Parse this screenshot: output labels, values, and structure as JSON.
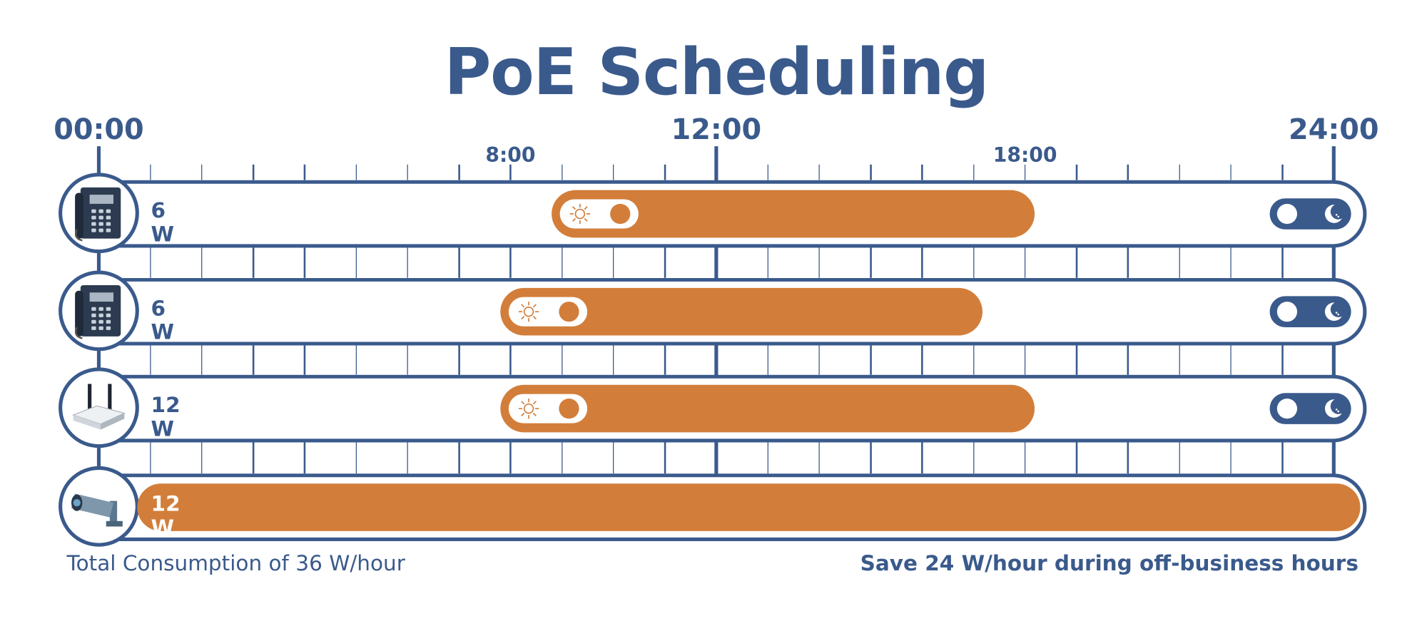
{
  "title": "PoE Scheduling",
  "axis": {
    "major_labels": [
      {
        "label": "00:00",
        "hour": 0
      },
      {
        "label": "12:00",
        "hour": 12
      },
      {
        "label": "24:00",
        "hour": 24
      }
    ],
    "minor_labels": [
      {
        "label": "8:00",
        "hour": 8
      },
      {
        "label": "18:00",
        "hour": 18
      }
    ]
  },
  "colors": {
    "navy": "#3a5a8c",
    "orange": "#d27e3a"
  },
  "devices": [
    {
      "icon": "desk-phone-icon",
      "power": "6 W",
      "on_start": 9,
      "on_end": 18,
      "day_toggle": true,
      "night_toggle": true
    },
    {
      "icon": "desk-phone-icon",
      "power": "6 W",
      "on_start": 8,
      "on_end": 17,
      "day_toggle": true,
      "night_toggle": true
    },
    {
      "icon": "wifi-router-icon",
      "power": "12 W",
      "on_start": 8,
      "on_end": 18,
      "day_toggle": true,
      "night_toggle": true
    },
    {
      "icon": "security-camera-icon",
      "power": "12 W",
      "on_start": 0,
      "on_end": 24,
      "day_toggle": false,
      "night_toggle": false
    }
  ],
  "footer": {
    "left": "Total Consumption of 36 W/hour",
    "right": "Save 24 W/hour during off-business hours"
  }
}
